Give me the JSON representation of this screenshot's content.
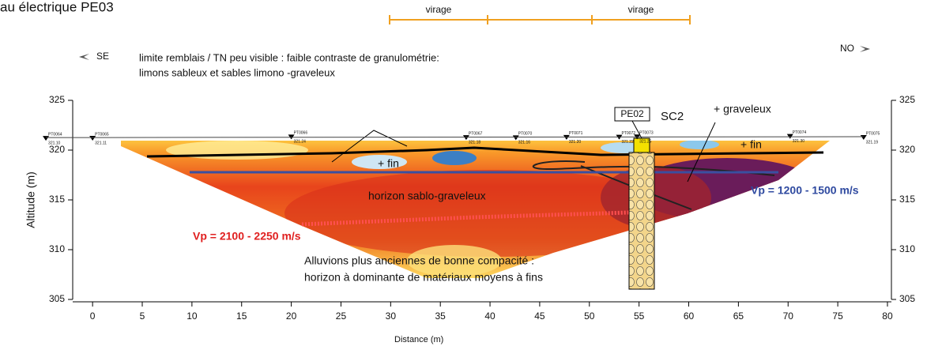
{
  "chart_data": {
    "type": "section",
    "title": "au électrique PE03",
    "x_label": "Distance (m)",
    "y_label": "Altitude (m)",
    "xlim": [
      -2,
      80.4
    ],
    "ylim": [
      305,
      325
    ],
    "xticks": [
      0,
      5,
      10,
      15,
      20,
      25,
      30,
      35,
      40,
      45,
      50,
      55,
      60,
      65,
      70,
      75,
      80
    ],
    "yticks": [
      305,
      310,
      315,
      320,
      325
    ],
    "virage_labels": [
      "virage",
      "virage"
    ],
    "direction_left": "SE",
    "direction_right": "NO",
    "stations": [
      {
        "name": "PT0064",
        "x": -4.7,
        "elevation": {
          "value": 321.1,
          "label": "321.10"
        }
      },
      {
        "name": "PT0065",
        "x": 0,
        "elevation": {
          "value": 321.11,
          "label": "321.11"
        }
      },
      {
        "name": "PT0066",
        "x": 20,
        "elevation": {
          "value": 321.24,
          "label": "321.24"
        }
      },
      {
        "name": "PT0067",
        "x": 37.6,
        "elevation": {
          "value": 321.18,
          "label": "321.18"
        }
      },
      {
        "name": "PT0070",
        "x": 42.6,
        "elevation": {
          "value": 321.16,
          "label": "321.16"
        }
      },
      {
        "name": "PT0071",
        "x": 47.7,
        "elevation": {
          "value": 321.2,
          "label": "321.20"
        }
      },
      {
        "name": "PT0072",
        "x": 53,
        "elevation": {
          "value": 321.22,
          "label": "321.22"
        }
      },
      {
        "name": "PT0073",
        "x": 54.8,
        "elevation": {
          "value": 321.25,
          "label": "321.25"
        }
      },
      {
        "name": "PT0074",
        "x": 70.2,
        "elevation": {
          "value": 321.3,
          "label": "321.30"
        }
      },
      {
        "name": "PT0075",
        "x": 77.6,
        "elevation": {
          "value": 321.19,
          "label": "321.19"
        }
      }
    ],
    "annotations": {
      "note_line1": "limite remblais / TN peu visible : faible contraste de granulométrie:",
      "note_line2": "limons sableux et sables limono -graveleux",
      "borehole_tag": "PE02",
      "borehole": "SC2",
      "graveleux": "+ graveleux",
      "fin_left": "+ fin",
      "fin_right": "+ fin",
      "horizon": "horizon sablo-graveleux",
      "vp_slow": "Vp = 1200 - 1500 m/s",
      "vp_fast": "Vp = 2100 - 2250 m/s",
      "alluvions_line1": "Alluvions plus anciennes de bonne compacité :",
      "alluvions_line2": "horizon à dominante de matériaux moyens à fins"
    }
  }
}
